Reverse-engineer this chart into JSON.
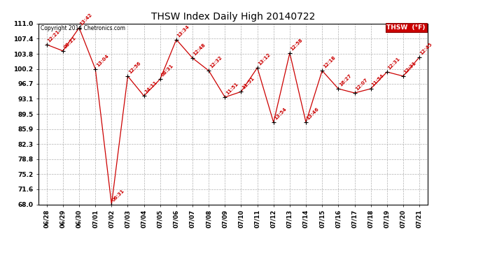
{
  "title": "THSW Index Daily High 20140722",
  "copyright": "Copyright 2014 Chetronics.com",
  "legend_label": "THSW  (°F)",
  "x_labels": [
    "06/28",
    "06/29",
    "06/30",
    "07/01",
    "07/02",
    "07/03",
    "07/04",
    "07/05",
    "07/06",
    "07/07",
    "07/08",
    "07/09",
    "07/10",
    "07/11",
    "07/12",
    "07/13",
    "07/14",
    "07/15",
    "07/16",
    "07/17",
    "07/18",
    "07/19",
    "07/20",
    "07/21"
  ],
  "y_values": [
    106.0,
    104.5,
    110.0,
    100.2,
    68.0,
    98.5,
    93.8,
    97.8,
    107.2,
    102.8,
    99.8,
    93.5,
    94.8,
    100.5,
    87.5,
    104.0,
    87.5,
    99.8,
    95.5,
    94.5,
    95.5,
    99.5,
    98.5,
    103.0
  ],
  "point_labels": [
    "12:21",
    "08:21",
    "13:42",
    "13:04",
    "06:31",
    "12:56",
    "14:11",
    "08:31",
    "13:34",
    "12:48",
    "12:32",
    "11:51",
    "11:51",
    "13:12",
    "13:54",
    "12:58",
    "13:46",
    "12:18",
    "16:27",
    "12:07",
    "11:54",
    "12:31",
    "12:31",
    "12:45"
  ],
  "ylim_min": 68.0,
  "ylim_max": 111.0,
  "yticks": [
    68.0,
    71.6,
    75.2,
    78.8,
    82.3,
    85.9,
    89.5,
    93.1,
    96.7,
    100.2,
    103.8,
    107.4,
    111.0
  ],
  "line_color": "#cc0000",
  "point_color": "#000000",
  "label_color": "#cc0000",
  "bg_color": "#ffffff",
  "plot_bg_color": "#ffffff",
  "grid_color": "#b0b0b0",
  "title_color": "#000000",
  "legend_bg": "#cc0000",
  "legend_text": "#ffffff",
  "figwidth": 6.9,
  "figheight": 3.75,
  "dpi": 100
}
